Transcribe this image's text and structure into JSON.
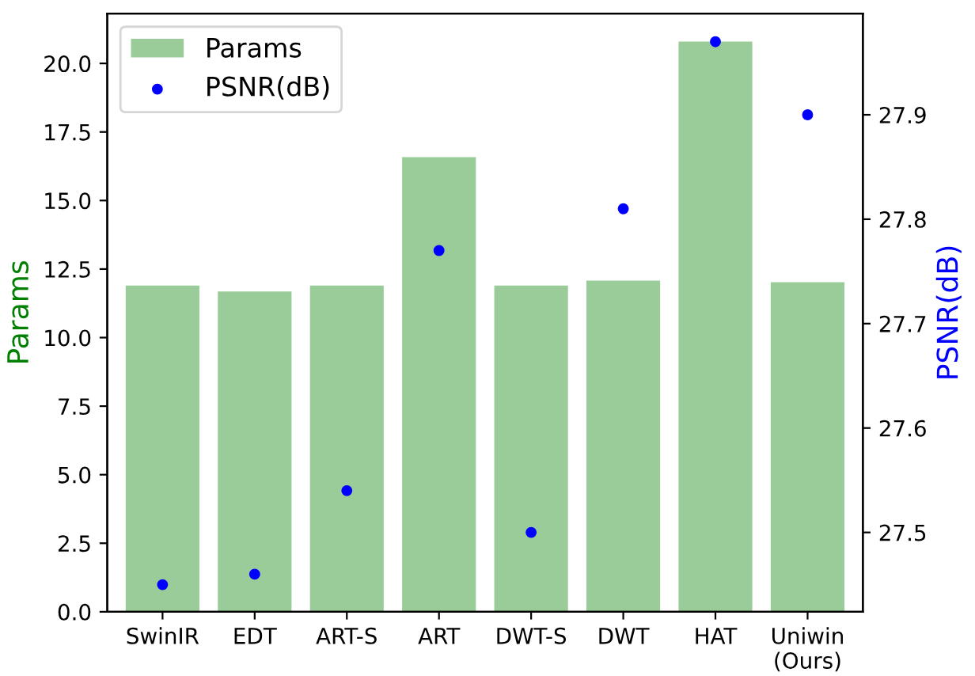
{
  "chart_data": {
    "type": "bar",
    "xlabel": null,
    "ylabel": "Params",
    "y2label": "PSNR(dB)",
    "categories": [
      "SwinIR",
      "EDT",
      "ART-S",
      "ART",
      "DWT-S",
      "DWT",
      "HAT",
      "Uniwin\n(Ours)"
    ],
    "series": [
      {
        "name": "Params",
        "color": "#99cc99",
        "values": [
          11.9,
          11.68,
          11.9,
          16.58,
          11.9,
          12.08,
          20.8,
          12.02
        ]
      },
      {
        "name": "PSNR(dB)",
        "type": "scatter",
        "axis": "y2",
        "color": "#0000ff",
        "marker": "circle",
        "values": [
          27.45,
          27.46,
          27.54,
          27.77,
          27.5,
          27.81,
          27.97,
          27.9
        ]
      }
    ],
    "ylim": [
      0,
      21.82
    ],
    "yticks": [
      {
        "value": 0,
        "label": "0.0"
      },
      {
        "value": 2.5,
        "label": "2.5"
      },
      {
        "value": 5,
        "label": "5.0"
      },
      {
        "value": 7.5,
        "label": "7.5"
      },
      {
        "value": 10,
        "label": "10.0"
      },
      {
        "value": 12.5,
        "label": "12.5"
      },
      {
        "value": 15,
        "label": "15.0"
      },
      {
        "value": 17.5,
        "label": "17.5"
      },
      {
        "value": 20,
        "label": "20.0"
      }
    ],
    "y2lim": [
      27.424,
      27.997
    ],
    "y2ticks": [
      27.5,
      27.6,
      27.7,
      27.8,
      27.9
    ],
    "legend": "top left",
    "grid": false
  }
}
